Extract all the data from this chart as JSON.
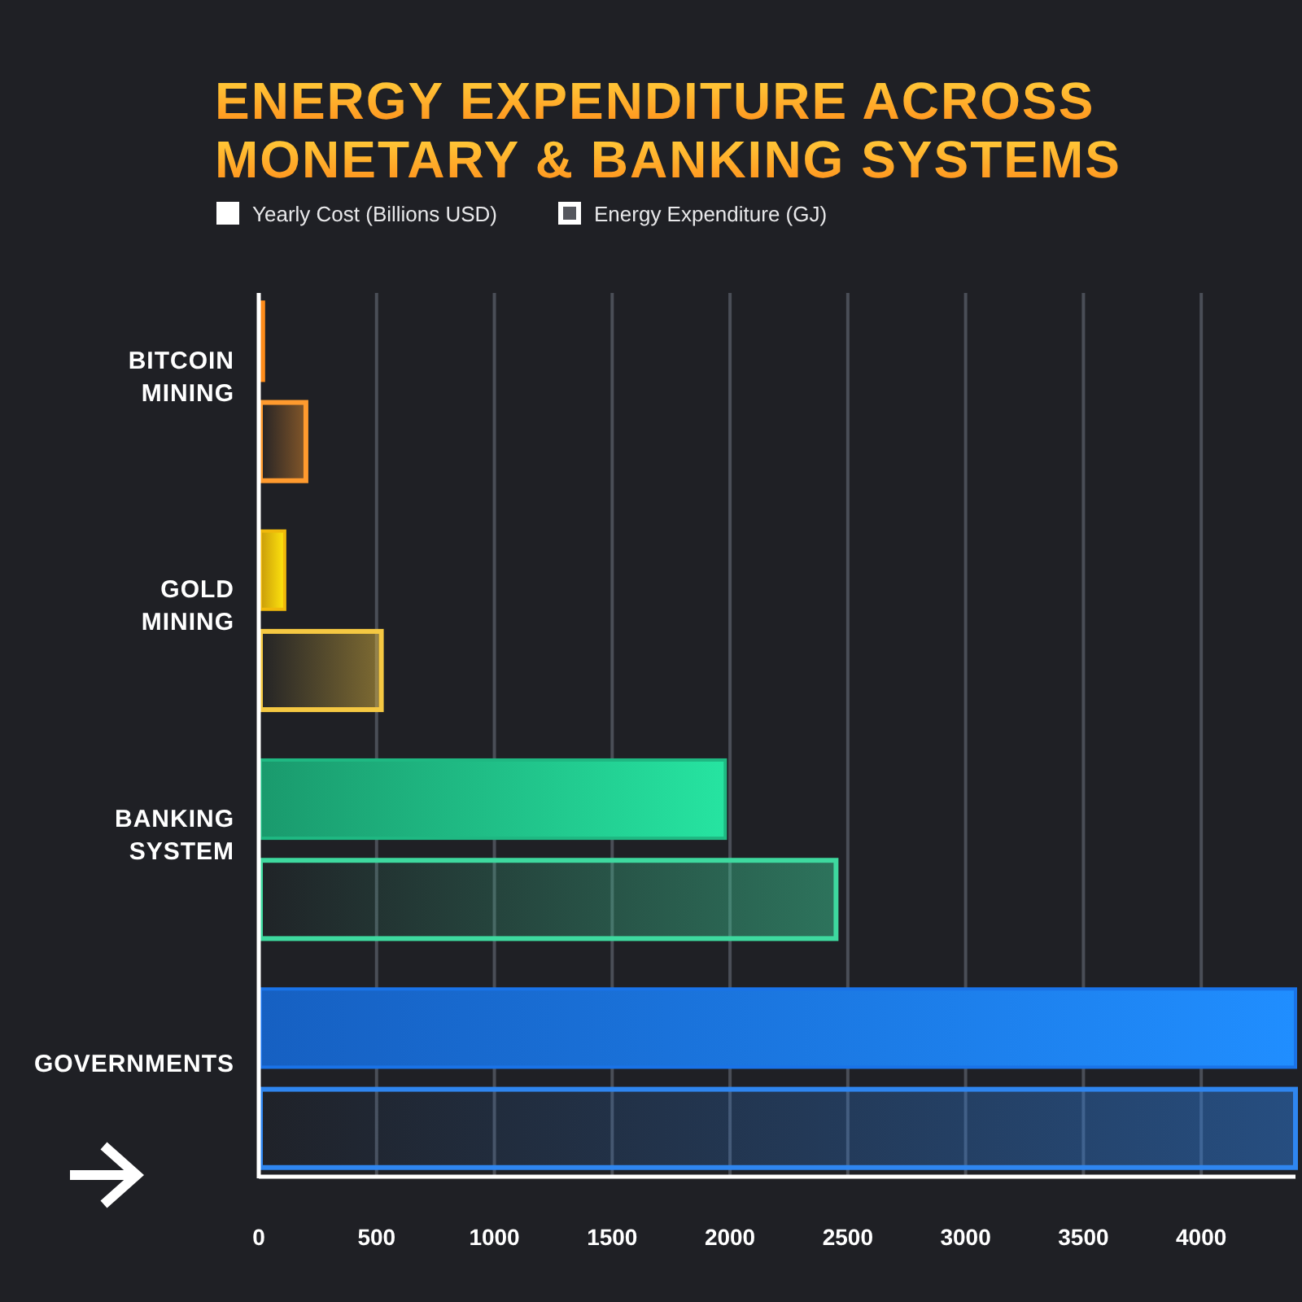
{
  "chart_data": {
    "type": "bar",
    "orientation": "horizontal",
    "title": "ENERGY EXPENDITURE ACROSS MONETARY & BANKING SYSTEMS",
    "categories": [
      "BITCOIN MINING",
      "GOLD MINING",
      "BANKING SYSTEM",
      "GOVERNMENTS"
    ],
    "series": [
      {
        "name": "Yearly Cost (Billions USD)",
        "color": "#ffffff",
        "colors": [
          "#ff8c1a",
          "#f0b90b",
          "#1fb882",
          "#1a73e8"
        ],
        "values": [
          20,
          110,
          1980,
          4400
        ]
      },
      {
        "name": "Energy Expenditure (GJ)",
        "color": "#ffffff",
        "colors": [
          "#ff9a2e",
          "#f5c842",
          "#3ed99f",
          "#2f86f0"
        ],
        "values": [
          200,
          520,
          2450,
          4400
        ]
      }
    ],
    "xlim": [
      0,
      4400
    ],
    "xticks": [
      0,
      500,
      1000,
      1500,
      2000,
      2500,
      3000,
      3500,
      4000
    ],
    "grid": "x",
    "legend": "top"
  }
}
